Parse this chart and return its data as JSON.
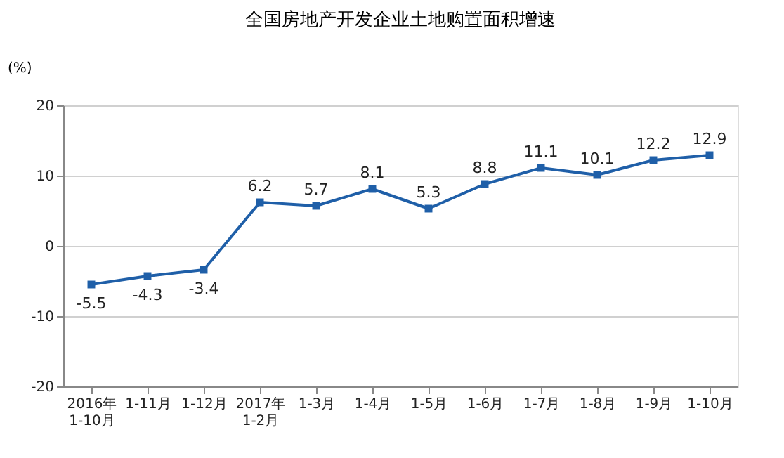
{
  "chart_data": {
    "type": "line",
    "title": "全国房地产开发企业土地购置面积增速",
    "ylabel": "(%)",
    "categories": [
      "2016年\n1-10月",
      "1-11月",
      "1-12月",
      "2017年\n1-2月",
      "1-3月",
      "1-4月",
      "1-5月",
      "1-6月",
      "1-7月",
      "1-8月",
      "1-9月",
      "1-10月"
    ],
    "series": [
      {
        "color": "#1f5fa8",
        "values": [
          -5.5,
          -4.3,
          -3.4,
          6.2,
          5.7,
          8.1,
          5.3,
          8.8,
          11.1,
          10.1,
          12.2,
          12.9
        ]
      }
    ],
    "ylim": [
      -20,
      20
    ],
    "yticks": [
      -20,
      -10,
      0,
      10,
      20
    ],
    "grid": "y",
    "marker": "square",
    "line_style": "solid",
    "data_labels": true
  }
}
